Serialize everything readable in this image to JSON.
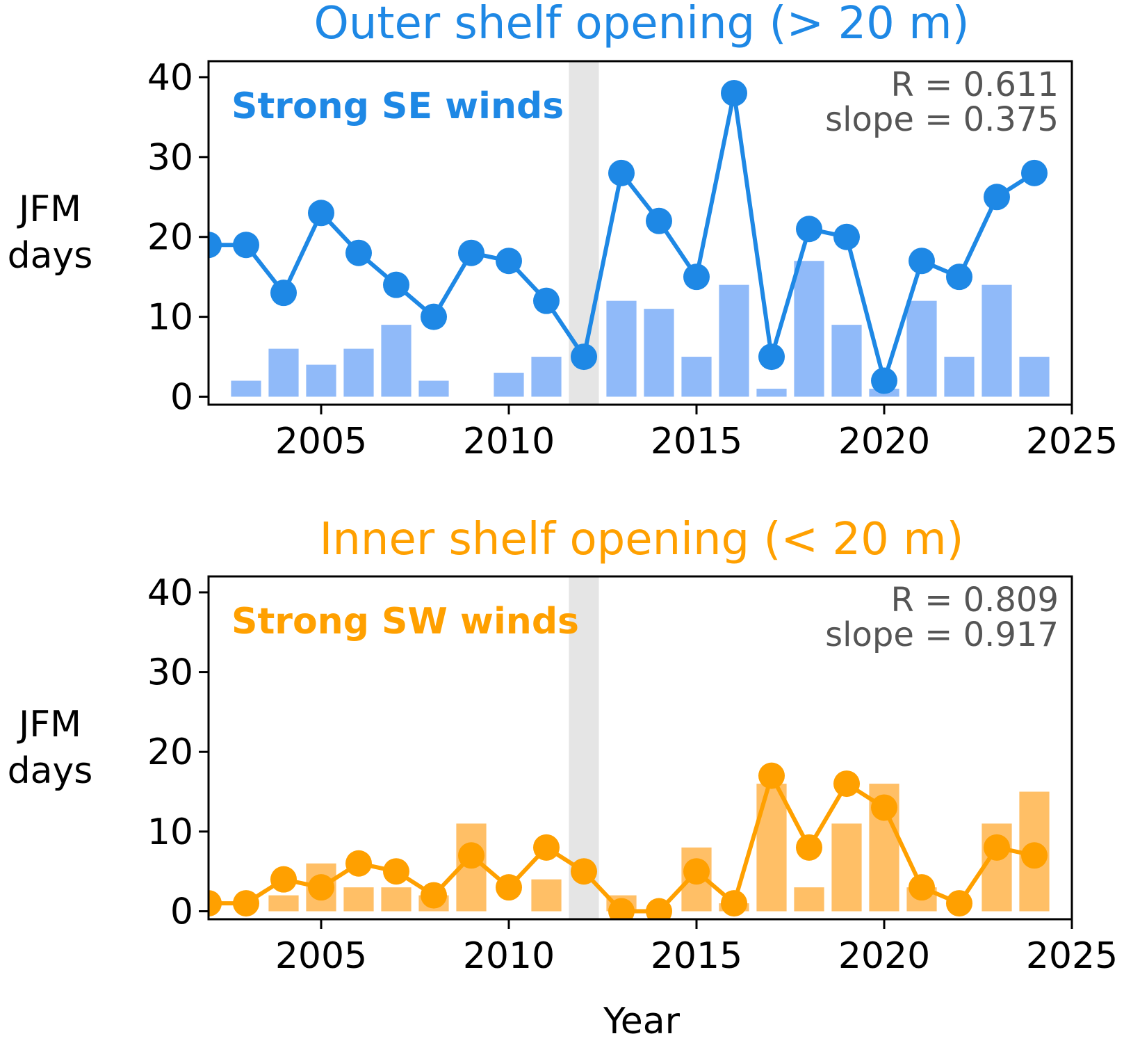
{
  "colors": {
    "blue_line": "#1E88E5",
    "blue_bar": "#90BAF9",
    "orange_line": "#FFA000",
    "orange_bar": "#FFBF66",
    "shade": "#E5E5E5",
    "stat_text": "#555555"
  },
  "chart_data": [
    {
      "type": "bar+line",
      "title": "Outer shelf opening (> 20 m)",
      "ylabel_line1": "JFM",
      "ylabel_line2": "days",
      "xlabel": "",
      "xlim": [
        2002,
        2025
      ],
      "ylim": [
        -1,
        42
      ],
      "yticks": [
        0,
        10,
        20,
        30,
        40
      ],
      "xticks": [
        2005,
        2010,
        2015,
        2020,
        2025
      ],
      "shaded_span": [
        2011.6,
        2012.4
      ],
      "annotation": "Strong SE winds",
      "stats_r": "R = 0.611",
      "stats_slope": "slope = 0.375",
      "bar_series": {
        "name": "Strong SE winds",
        "x": [
          2003,
          2004,
          2005,
          2006,
          2007,
          2008,
          2009,
          2010,
          2011,
          2012,
          2013,
          2014,
          2015,
          2016,
          2017,
          2018,
          2019,
          2020,
          2021,
          2022,
          2023,
          2024
        ],
        "values": [
          2,
          6,
          4,
          6,
          9,
          2,
          0,
          3,
          5,
          0,
          12,
          11,
          5,
          14,
          1,
          17,
          9,
          1,
          12,
          5,
          14,
          5
        ]
      },
      "line_series": {
        "name": "Outer shelf opening",
        "x": [
          2002,
          2003,
          2004,
          2005,
          2006,
          2007,
          2008,
          2009,
          2010,
          2011,
          2012,
          2013,
          2014,
          2015,
          2016,
          2017,
          2018,
          2019,
          2020,
          2021,
          2022,
          2023,
          2024
        ],
        "values": [
          19,
          19,
          13,
          23,
          18,
          14,
          10,
          18,
          17,
          12,
          5,
          28,
          22,
          15,
          38,
          5,
          21,
          20,
          2,
          17,
          15,
          25,
          28
        ]
      }
    },
    {
      "type": "bar+line",
      "title": "Inner shelf opening (< 20 m)",
      "ylabel_line1": "JFM",
      "ylabel_line2": "days",
      "xlabel": "Year",
      "xlim": [
        2002,
        2025
      ],
      "ylim": [
        -1,
        42
      ],
      "yticks": [
        0,
        10,
        20,
        30,
        40
      ],
      "xticks": [
        2005,
        2010,
        2015,
        2020,
        2025
      ],
      "shaded_span": [
        2011.6,
        2012.4
      ],
      "annotation": "Strong SW winds",
      "stats_r": "R = 0.809",
      "stats_slope": "slope = 0.917",
      "bar_series": {
        "name": "Strong SW winds",
        "x": [
          2003,
          2004,
          2005,
          2006,
          2007,
          2008,
          2009,
          2010,
          2011,
          2012,
          2013,
          2014,
          2015,
          2016,
          2017,
          2018,
          2019,
          2020,
          2021,
          2022,
          2023,
          2024
        ],
        "values": [
          0,
          2,
          6,
          3,
          3,
          2,
          11,
          0,
          4,
          0,
          2,
          0,
          8,
          1,
          16,
          3,
          11,
          16,
          3,
          0,
          11,
          15
        ]
      },
      "line_series": {
        "name": "Inner shelf opening",
        "x": [
          2002,
          2003,
          2004,
          2005,
          2006,
          2007,
          2008,
          2009,
          2010,
          2011,
          2012,
          2013,
          2014,
          2015,
          2016,
          2017,
          2018,
          2019,
          2020,
          2021,
          2022,
          2023,
          2024
        ],
        "values": [
          1,
          1,
          4,
          3,
          6,
          5,
          2,
          7,
          3,
          8,
          5,
          0,
          0,
          5,
          1,
          17,
          8,
          16,
          13,
          3,
          1,
          8,
          7
        ]
      }
    }
  ]
}
